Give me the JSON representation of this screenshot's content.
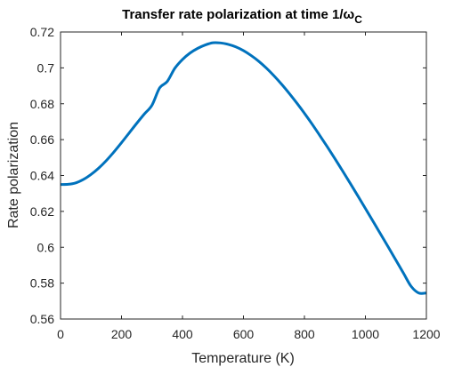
{
  "chart_data": {
    "type": "line",
    "title": "Transfer rate polarization at time 1/ω",
    "title_subscript": "C",
    "xlabel": "Temperature (K)",
    "ylabel": "Rate polarization",
    "xlim": [
      0,
      1200
    ],
    "ylim": [
      0.56,
      0.72
    ],
    "xticks": [
      0,
      200,
      400,
      600,
      800,
      1000,
      1200
    ],
    "xtick_labels": [
      "0",
      "200",
      "400",
      "600",
      "800",
      "1000",
      "1200"
    ],
    "yticks": [
      0.56,
      0.58,
      0.6,
      0.62,
      0.64,
      0.66,
      0.68,
      0.7,
      0.72
    ],
    "ytick_labels": [
      "0.56",
      "0.58",
      "0.6",
      "0.62",
      "0.64",
      "0.66",
      "0.68",
      "0.7",
      "0.72"
    ],
    "grid": false,
    "box": true,
    "series": [
      {
        "color": "#0072BD",
        "x": [
          0,
          25,
          50,
          75,
          100,
          125,
          150,
          175,
          200,
          225,
          250,
          275,
          300,
          325,
          350,
          375,
          400,
          425,
          450,
          475,
          500,
          525,
          550,
          575,
          600,
          625,
          650,
          675,
          700,
          725,
          750,
          775,
          800,
          825,
          850,
          875,
          900,
          925,
          950,
          975,
          1000,
          1025,
          1050,
          1075,
          1100,
          1125,
          1150,
          1175,
          1200
        ],
        "y": [
          0.635,
          0.6351,
          0.6359,
          0.6378,
          0.6406,
          0.6441,
          0.6483,
          0.6531,
          0.6583,
          0.6637,
          0.6691,
          0.6743,
          0.6792,
          0.6888,
          0.6924,
          0.6998,
          0.7047,
          0.7083,
          0.7109,
          0.7128,
          0.714,
          0.7139,
          0.7131,
          0.7117,
          0.7096,
          0.7069,
          0.7037,
          0.6999,
          0.6956,
          0.6909,
          0.6858,
          0.6804,
          0.6747,
          0.6687,
          0.6624,
          0.656,
          0.6494,
          0.6426,
          0.6357,
          0.6287,
          0.6216,
          0.6145,
          0.6073,
          0.6001,
          0.5928,
          0.5855,
          0.5782,
          0.5745,
          0.5745
        ]
      }
    ]
  }
}
